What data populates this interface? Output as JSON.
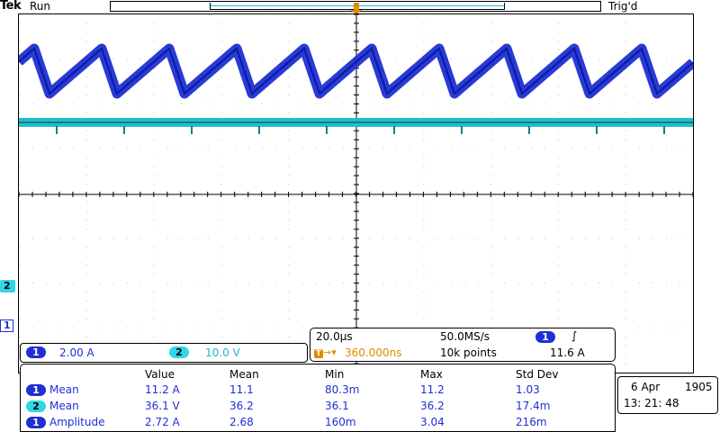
{
  "brand": "Tek",
  "acq_state": "Run",
  "trigger_status": "Trig'd",
  "trigger_marker": "T",
  "channel_markers": {
    "ch2": "2",
    "ch1": "1"
  },
  "channels": [
    {
      "id": "1",
      "scale": "2.00 A",
      "color": "#1e2fd3"
    },
    {
      "id": "2",
      "scale": "10.0 V",
      "color": "#33d6e6"
    }
  ],
  "horizontal": {
    "time_div": "20.0µs",
    "sample_rate": "50.0MS/s",
    "trigger_pos": "360.000ns",
    "record_length": "10k points",
    "trigger_channel": "1",
    "trigger_slope": "∫",
    "trigger_level": "11.6 A"
  },
  "measurements": {
    "headers": [
      "Value",
      "Mean",
      "Min",
      "Max",
      "Std Dev"
    ],
    "rows": [
      {
        "ch": "1",
        "name": "Mean",
        "value": "11.2 A",
        "mean": "11.1",
        "min": "80.3m",
        "max": "11.2",
        "std": "1.03"
      },
      {
        "ch": "2",
        "name": "Mean",
        "value": "36.1 V",
        "mean": "36.2",
        "min": "36.1",
        "max": "36.2",
        "std": "17.4m"
      },
      {
        "ch": "1",
        "name": "Amplitude",
        "value": "2.72 A",
        "mean": "2.68",
        "min": "160m",
        "max": "3.04",
        "std": "216m"
      }
    ]
  },
  "datetime": {
    "date": "6 Apr",
    "year": "1905",
    "time": "13: 21: 48"
  }
}
